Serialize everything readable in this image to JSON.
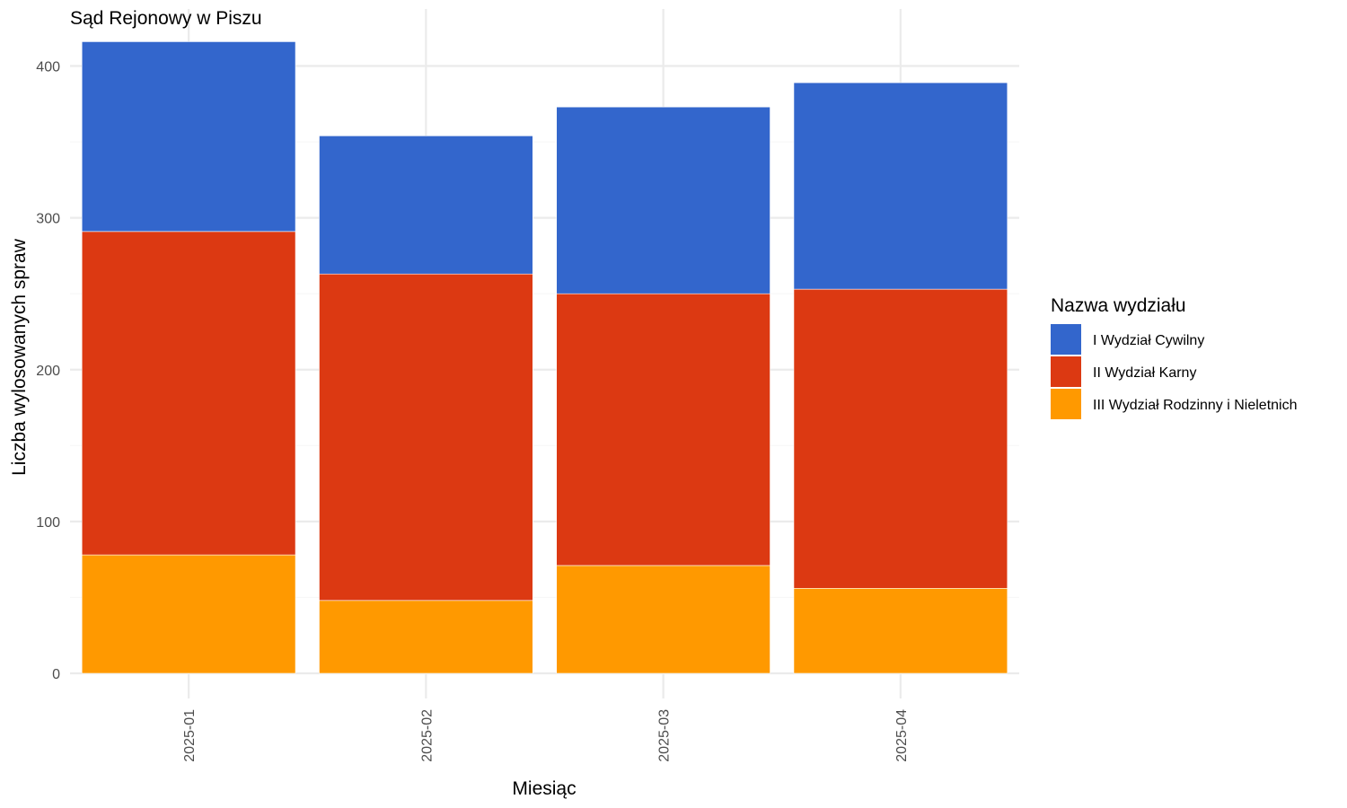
{
  "chart_data": {
    "type": "bar",
    "stacked": true,
    "title": "Sąd Rejonowy w Piszu",
    "xlabel": "Miesiąc",
    "ylabel": "Liczba wylosowanych spraw",
    "categories": [
      "2025-01",
      "2025-02",
      "2025-03",
      "2025-04"
    ],
    "ylim": [
      0,
      420
    ],
    "yticks": [
      0,
      100,
      200,
      300,
      400
    ],
    "grid": true,
    "legend": {
      "title": "Nazwa wydziału",
      "position": "right"
    },
    "series": [
      {
        "name": "III Wydział Rodzinny i Nieletnich",
        "color": "#FF9900",
        "values": [
          78,
          48,
          71,
          56
        ]
      },
      {
        "name": "II Wydział Karny",
        "color": "#DC3912",
        "values": [
          213,
          215,
          179,
          197
        ]
      },
      {
        "name": "I Wydział Cywilny",
        "color": "#3366CC",
        "values": [
          125,
          91,
          123,
          136
        ]
      }
    ]
  }
}
